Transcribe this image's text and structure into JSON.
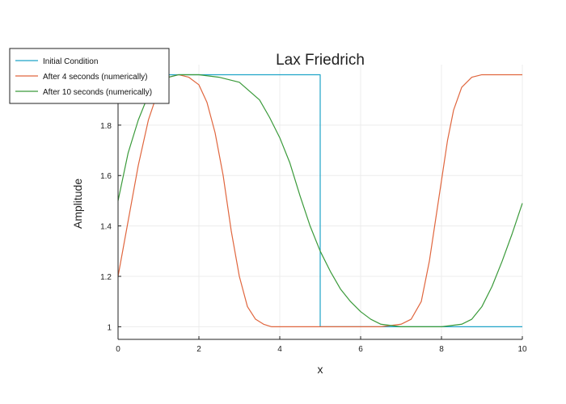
{
  "chart_data": {
    "type": "line",
    "title": "Lax Friedrich",
    "xlabel": "x",
    "ylabel": "Amplitude",
    "xlim": [
      0,
      10
    ],
    "ylim": [
      0.95,
      2.04
    ],
    "xticks": [
      0,
      2,
      4,
      6,
      8,
      10
    ],
    "xtick_labels": [
      "0",
      "2",
      "4",
      "6",
      "8",
      "10"
    ],
    "yticks": [
      1,
      1.2,
      1.4,
      1.6,
      1.8
    ],
    "ytick_labels": [
      "1",
      "1.2",
      "1.4",
      "1.6",
      "1.8"
    ],
    "grid": true,
    "legend_position": "top-left (outside)",
    "series": [
      {
        "name": "Initial Condition",
        "color": "#1fa4c8",
        "x": [
          0,
          5,
          5,
          10
        ],
        "y": [
          2,
          2,
          1,
          1
        ]
      },
      {
        "name": "After 4 seconds (numerically)",
        "color": "#e0663e",
        "x": [
          0,
          0.25,
          0.5,
          0.75,
          1,
          1.25,
          1.5,
          1.75,
          2,
          2.2,
          2.4,
          2.6,
          2.8,
          3,
          3.2,
          3.4,
          3.6,
          3.8,
          4,
          4.25,
          4.5,
          5,
          5.5,
          6,
          6.5,
          7,
          7.25,
          7.5,
          7.7,
          7.85,
          8,
          8.15,
          8.3,
          8.5,
          8.75,
          9,
          9.5,
          10
        ],
        "y": [
          1.2,
          1.42,
          1.64,
          1.82,
          1.94,
          1.99,
          2.0,
          1.99,
          1.96,
          1.89,
          1.77,
          1.6,
          1.38,
          1.2,
          1.08,
          1.03,
          1.01,
          1.0,
          1.0,
          1.0,
          1.0,
          1.0,
          1.0,
          1.0,
          1.0,
          1.01,
          1.03,
          1.1,
          1.26,
          1.42,
          1.58,
          1.74,
          1.86,
          1.95,
          1.99,
          2.0,
          2.0,
          2.0
        ]
      },
      {
        "name": "After 10 seconds (numerically)",
        "color": "#3a9a3a",
        "x": [
          0,
          0.25,
          0.5,
          0.75,
          1,
          1.25,
          1.5,
          2,
          2.5,
          3,
          3.5,
          3.75,
          4,
          4.25,
          4.5,
          4.75,
          5,
          5.25,
          5.5,
          5.75,
          6,
          6.25,
          6.5,
          7,
          7.5,
          8,
          8.5,
          8.75,
          9,
          9.25,
          9.5,
          9.75,
          10
        ],
        "y": [
          1.5,
          1.69,
          1.82,
          1.92,
          1.97,
          1.99,
          2.0,
          2.0,
          1.99,
          1.97,
          1.9,
          1.83,
          1.75,
          1.65,
          1.52,
          1.4,
          1.3,
          1.22,
          1.15,
          1.1,
          1.06,
          1.03,
          1.01,
          1.0,
          1.0,
          1.0,
          1.01,
          1.03,
          1.08,
          1.16,
          1.26,
          1.37,
          1.49
        ]
      }
    ]
  }
}
